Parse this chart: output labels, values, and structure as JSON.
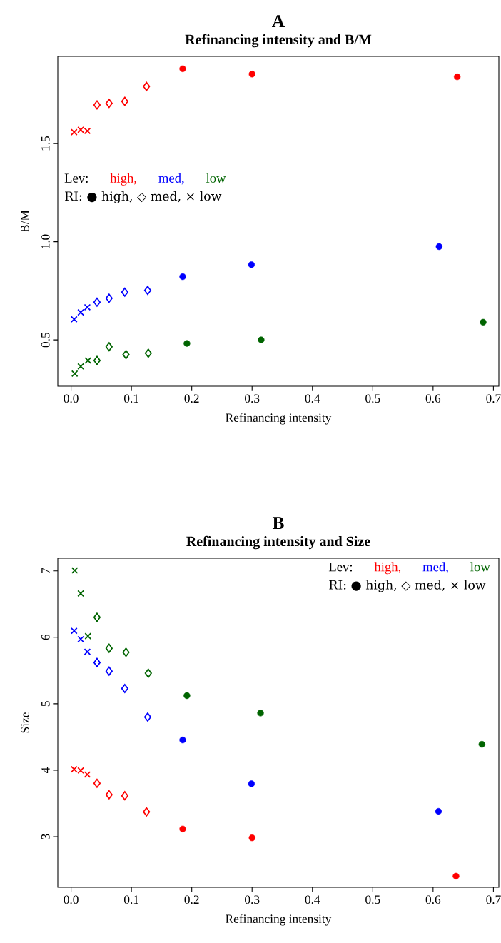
{
  "chart_data": [
    {
      "type": "scatter",
      "title": "A",
      "subtitle": "Refinancing intensity and B/M",
      "xlabel": "Refinancing intensity",
      "ylabel": "B/M",
      "legend_title": "Lev:",
      "annotations": [
        "RI: ● high, ◇ med, × low"
      ],
      "legend": "left",
      "xlim": [
        -0.022,
        0.709
      ],
      "ylim": [
        0.264,
        1.944
      ],
      "xticks": [
        {
          "value": 0,
          "label": "0.0"
        },
        0.1,
        0.2,
        0.3,
        0.4,
        0.5,
        0.6,
        0.7
      ],
      "yticks": [
        0.5,
        {
          "value": 1.0,
          "label": "1.0"
        },
        1.5
      ],
      "series": [
        {
          "name": "high,",
          "color": "#ff0000",
          "marker": "circle",
          "x": [
            0.185,
            0.3,
            0.64
          ],
          "values": [
            1.881,
            1.854,
            1.84
          ]
        },
        {
          "color": "#ff0000",
          "marker": "diamond",
          "x": [
            0.043,
            0.063,
            0.089,
            0.125
          ],
          "values": [
            1.697,
            1.705,
            1.715,
            1.791
          ]
        },
        {
          "color": "#ff0000",
          "marker": "cross",
          "x": [
            0.005,
            0.016,
            0.027
          ],
          "values": [
            1.558,
            1.57,
            1.564
          ]
        },
        {
          "name": "med,",
          "color": "#0000ff",
          "marker": "circle",
          "x": [
            0.185,
            0.299,
            0.61
          ],
          "values": [
            0.822,
            0.883,
            0.975
          ]
        },
        {
          "color": "#0000ff",
          "marker": "diamond",
          "x": [
            0.043,
            0.063,
            0.089,
            0.127
          ],
          "values": [
            0.692,
            0.712,
            0.743,
            0.752
          ]
        },
        {
          "color": "#0000ff",
          "marker": "cross",
          "x": [
            0.005,
            0.016,
            0.027
          ],
          "values": [
            0.605,
            0.64,
            0.666
          ]
        },
        {
          "name": "low",
          "color": "#006400",
          "marker": "circle",
          "x": [
            0.192,
            0.315,
            0.683
          ],
          "values": [
            0.482,
            0.5,
            0.59
          ]
        },
        {
          "color": "#006400",
          "marker": "diamond",
          "x": [
            0.043,
            0.063,
            0.091,
            0.128
          ],
          "values": [
            0.395,
            0.465,
            0.425,
            0.432
          ]
        },
        {
          "color": "#006400",
          "marker": "cross",
          "x": [
            0.006,
            0.016,
            0.028
          ],
          "values": [
            0.328,
            0.365,
            0.395
          ]
        }
      ]
    },
    {
      "type": "scatter",
      "title": "B",
      "subtitle": "Refinancing intensity and Size",
      "xlabel": "Refinancing intensity",
      "ylabel": "Size",
      "legend_title": "Lev:",
      "annotations": [
        "RI: ● high, ◇ med, × low"
      ],
      "legend": "top right",
      "xlim": [
        -0.022,
        0.709
      ],
      "ylim": [
        2.237,
        7.19
      ],
      "xticks": [
        {
          "value": 0,
          "label": "0.0"
        },
        0.1,
        0.2,
        0.3,
        0.4,
        0.5,
        0.6,
        0.7
      ],
      "yticks": [
        3,
        4,
        5,
        6,
        7
      ],
      "series": [
        {
          "name": "high,",
          "color": "#ff0000",
          "marker": "circle",
          "x": [
            0.185,
            0.3,
            0.638
          ],
          "values": [
            3.115,
            2.982,
            2.405
          ]
        },
        {
          "color": "#ff0000",
          "marker": "diamond",
          "x": [
            0.043,
            0.063,
            0.089,
            0.125
          ],
          "values": [
            3.803,
            3.631,
            3.616,
            3.373
          ]
        },
        {
          "color": "#ff0000",
          "marker": "cross",
          "x": [
            0.005,
            0.016,
            0.027
          ],
          "values": [
            4.014,
            3.996,
            3.935
          ]
        },
        {
          "name": "med,",
          "color": "#0000ff",
          "marker": "circle",
          "x": [
            0.185,
            0.299,
            0.609
          ],
          "values": [
            4.455,
            3.796,
            3.38
          ]
        },
        {
          "color": "#0000ff",
          "marker": "diamond",
          "x": [
            0.043,
            0.063,
            0.089,
            0.127
          ],
          "values": [
            5.62,
            5.491,
            5.229,
            4.799
          ]
        },
        {
          "color": "#0000ff",
          "marker": "cross",
          "x": [
            0.005,
            0.016,
            0.027
          ],
          "values": [
            6.097,
            5.971,
            5.781
          ]
        },
        {
          "name": "low",
          "color": "#006400",
          "marker": "circle",
          "x": [
            0.192,
            0.314,
            0.681
          ],
          "values": [
            5.122,
            4.86,
            4.39
          ]
        },
        {
          "color": "#006400",
          "marker": "diamond",
          "x": [
            0.043,
            0.063,
            0.091,
            0.128
          ],
          "values": [
            6.3,
            5.835,
            5.774,
            5.459
          ]
        },
        {
          "color": "#006400",
          "marker": "cross",
          "x": [
            0.006,
            0.016,
            0.028
          ],
          "values": [
            7.007,
            6.66,
            6.018
          ]
        }
      ]
    }
  ]
}
